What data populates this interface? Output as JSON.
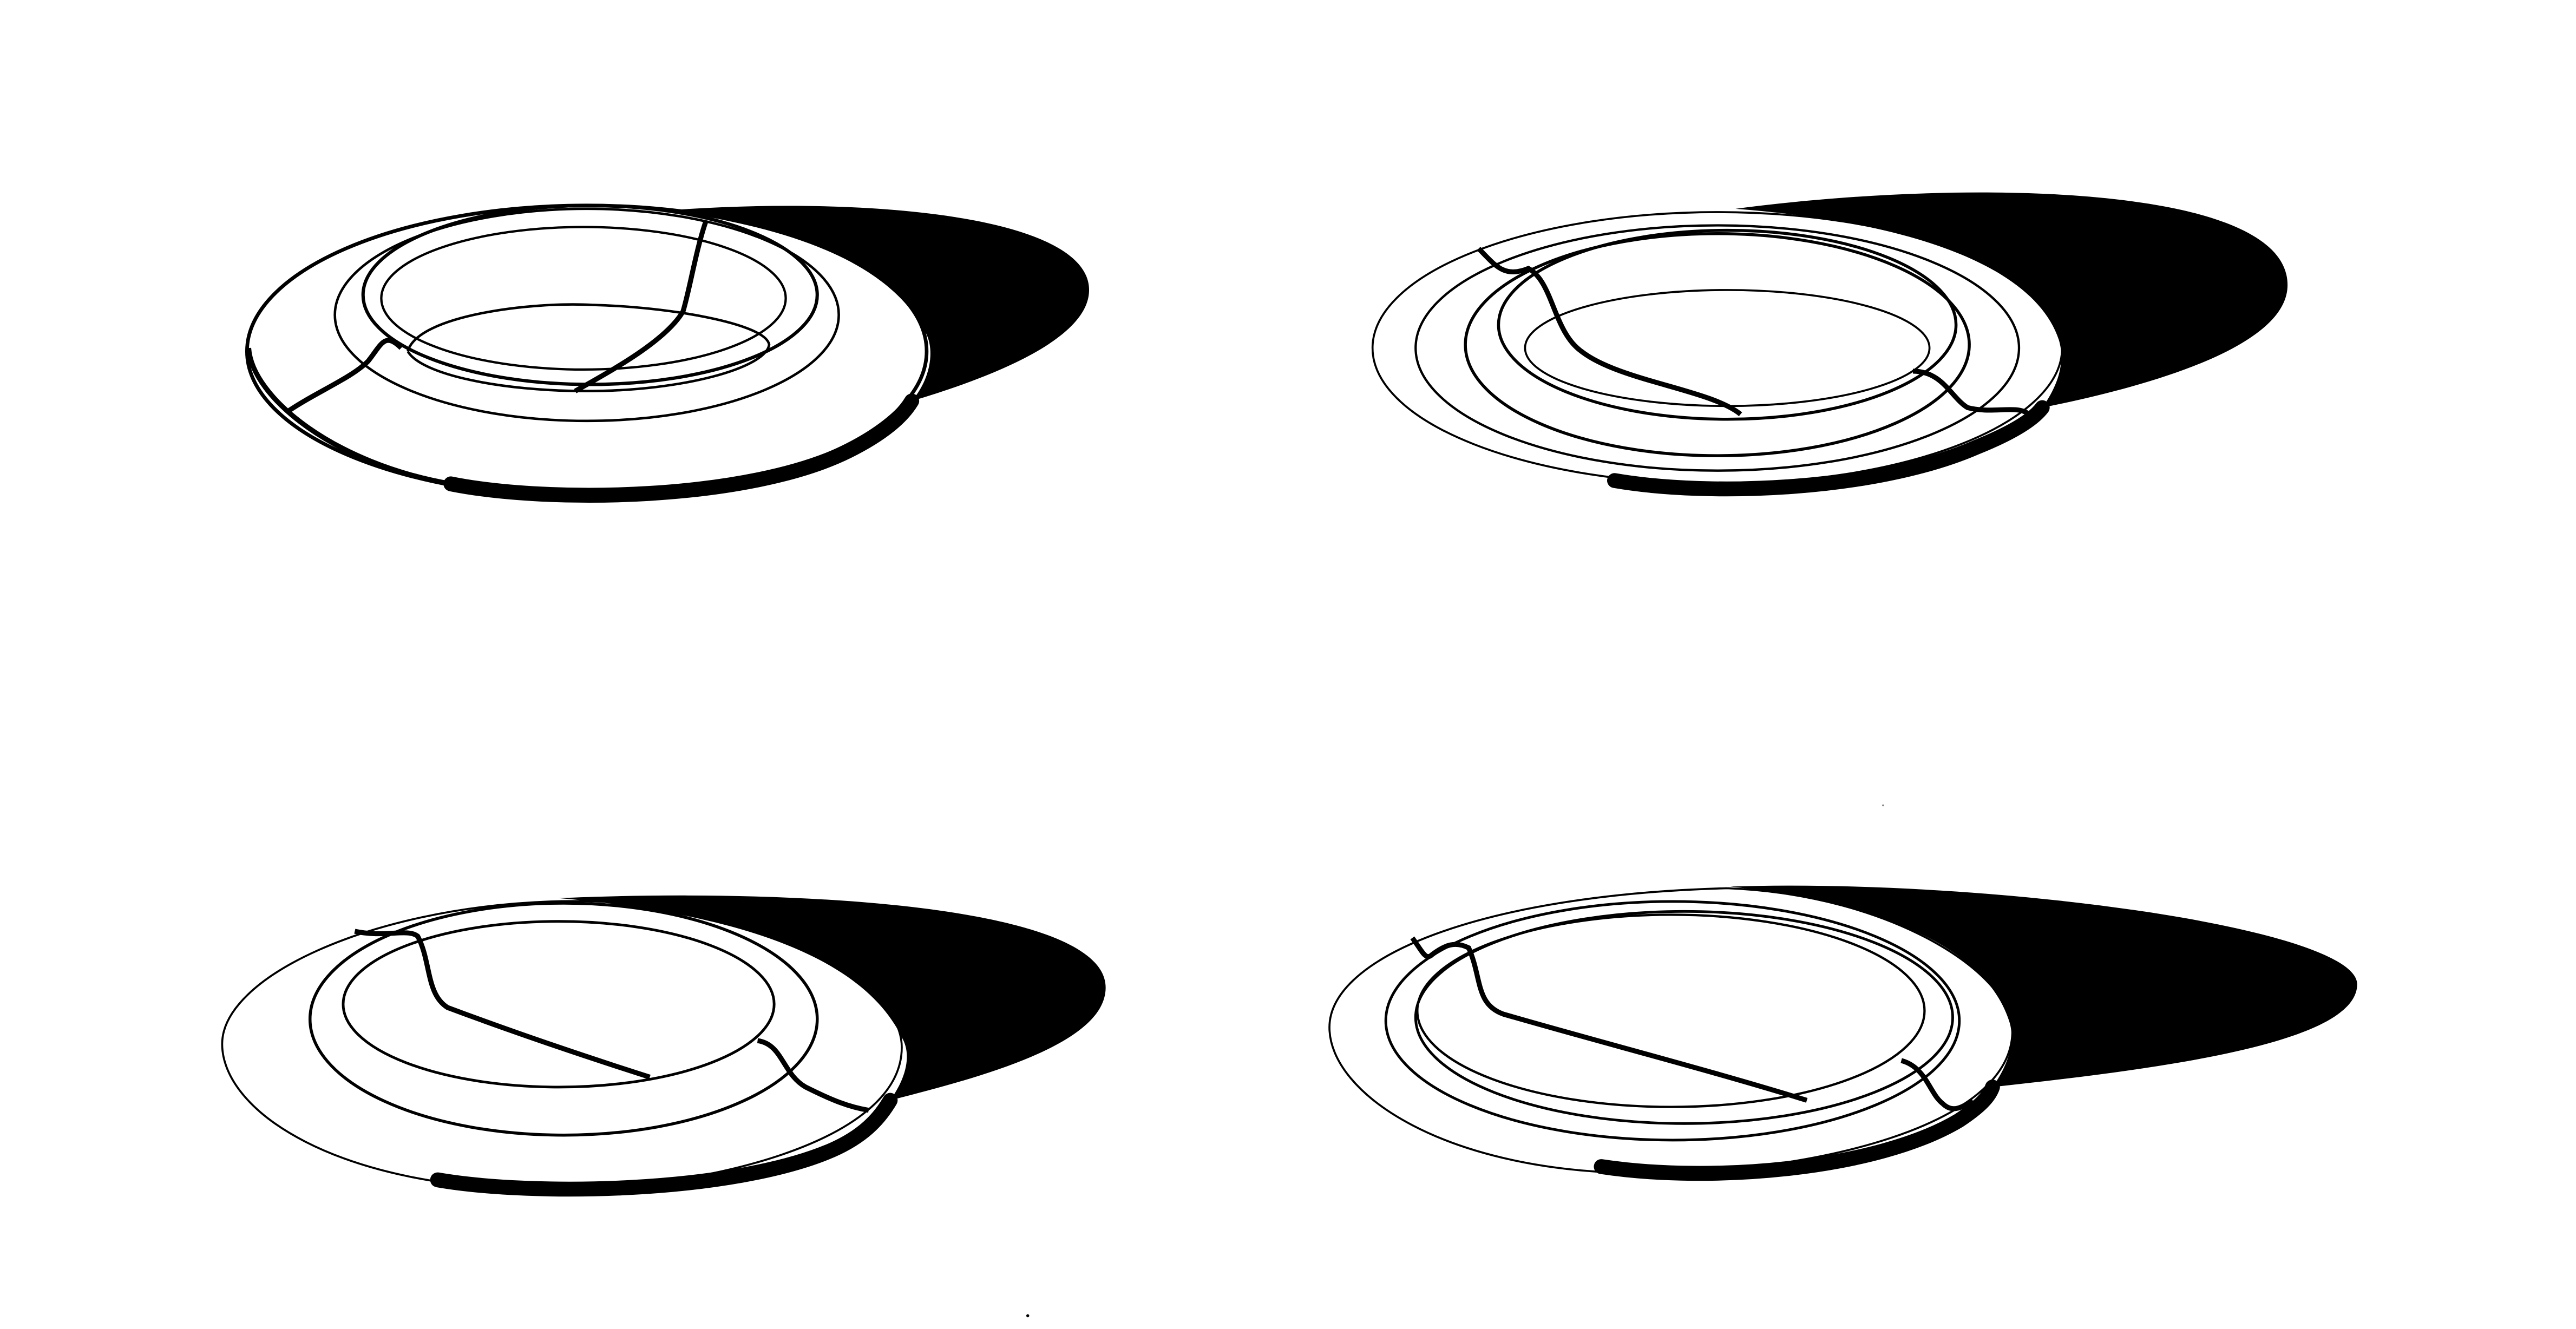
{
  "figure": {
    "panel_count": 4,
    "colors": {
      "background": "#ffffff",
      "line": "#000000",
      "shadow": "#000000"
    },
    "panels": [
      {
        "name": "top-left",
        "ring_count": 4,
        "cut_curves": 3
      },
      {
        "name": "top-right",
        "ring_count": 5,
        "cut_curves": 2
      },
      {
        "name": "bottom-left",
        "ring_count": 3,
        "cut_curves": 2
      },
      {
        "name": "bottom-right",
        "ring_count": 4,
        "cut_curves": 3
      }
    ]
  }
}
